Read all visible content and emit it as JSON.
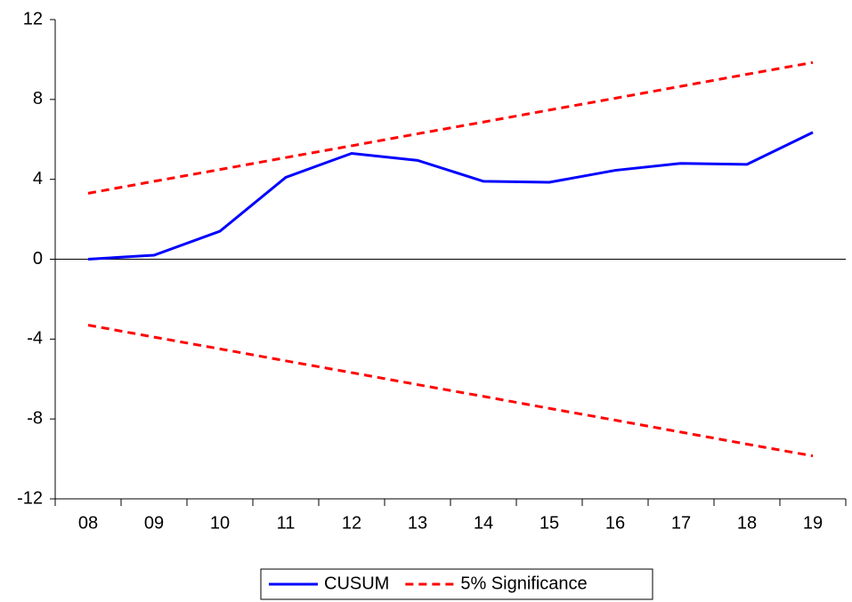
{
  "chart_data": {
    "type": "line",
    "categories": [
      "08",
      "09",
      "10",
      "11",
      "12",
      "13",
      "14",
      "15",
      "16",
      "17",
      "18",
      "19"
    ],
    "series": [
      {
        "name": "CUSUM",
        "color": "#0000ff",
        "dash": false,
        "values": [
          0,
          0.2,
          1.4,
          4.1,
          5.3,
          4.95,
          3.9,
          3.85,
          4.45,
          4.8,
          4.75,
          6.35
        ]
      },
      {
        "name": "5% Significance",
        "color": "#ff0000",
        "dash": true,
        "values": [
          3.3,
          3.9,
          4.49,
          5.09,
          5.68,
          6.28,
          6.87,
          7.47,
          8.06,
          8.66,
          9.26,
          9.85
        ],
        "lower": [
          -3.3,
          -3.9,
          -4.49,
          -5.09,
          -5.68,
          -6.28,
          -6.87,
          -7.47,
          -8.06,
          -8.66,
          -9.26,
          -9.85
        ]
      }
    ],
    "ylim": [
      -12,
      12
    ],
    "yticks": [
      12,
      8,
      4,
      0,
      -4,
      -8,
      -12
    ],
    "zero_line": true
  }
}
